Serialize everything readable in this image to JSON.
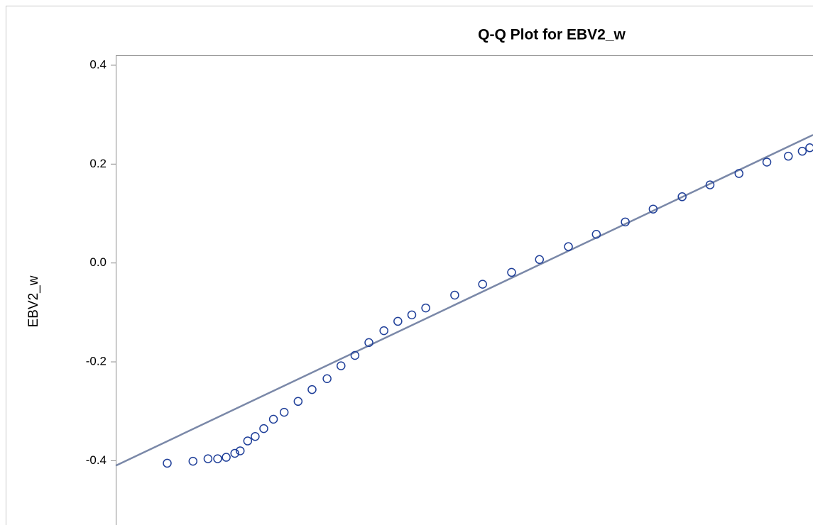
{
  "chart_data": {
    "type": "scatter",
    "title": "Q-Q Plot for EBV2_w",
    "y_label": "EBV2_w",
    "xlim": [
      -3.5,
      3.0
    ],
    "ylim": [
      -0.53,
      0.42
    ],
    "yticks": [
      0.4,
      0.2,
      {
        "value": 0,
        "label": "0.0"
      },
      -0.2,
      -0.4
    ],
    "series": [
      {
        "name": "EBV2_w",
        "type": "scatter",
        "color": "#1f3f99",
        "x": [
          -3.02,
          -2.78,
          -2.64,
          -2.55,
          -2.47,
          -2.39,
          -2.34,
          -2.27,
          -2.2,
          -2.12,
          -2.03,
          -1.93,
          -1.8,
          -1.67,
          -1.53,
          -1.4,
          -1.27,
          -1.14,
          -1.0,
          -0.87,
          -0.74,
          -0.61,
          -0.34,
          -0.08,
          0.19,
          0.45,
          0.72,
          0.98,
          1.25,
          1.51,
          1.78,
          2.04,
          2.31,
          2.57,
          2.77,
          2.9,
          2.97
        ],
        "values": [
          -0.405,
          -0.401,
          -0.396,
          -0.396,
          -0.393,
          -0.385,
          -0.38,
          -0.36,
          -0.351,
          -0.335,
          -0.316,
          -0.302,
          -0.28,
          -0.256,
          -0.234,
          -0.208,
          -0.187,
          -0.161,
          -0.137,
          -0.118,
          -0.105,
          -0.091,
          -0.065,
          -0.043,
          -0.019,
          0.007,
          0.033,
          0.058,
          0.083,
          0.109,
          0.134,
          0.158,
          0.181,
          0.204,
          0.216,
          0.226,
          0.233
        ]
      },
      {
        "type": "line",
        "color": "#7a88a8",
        "x": [
          -3.5,
          3.0
        ],
        "values": [
          -0.41,
          0.259
        ]
      }
    ]
  }
}
